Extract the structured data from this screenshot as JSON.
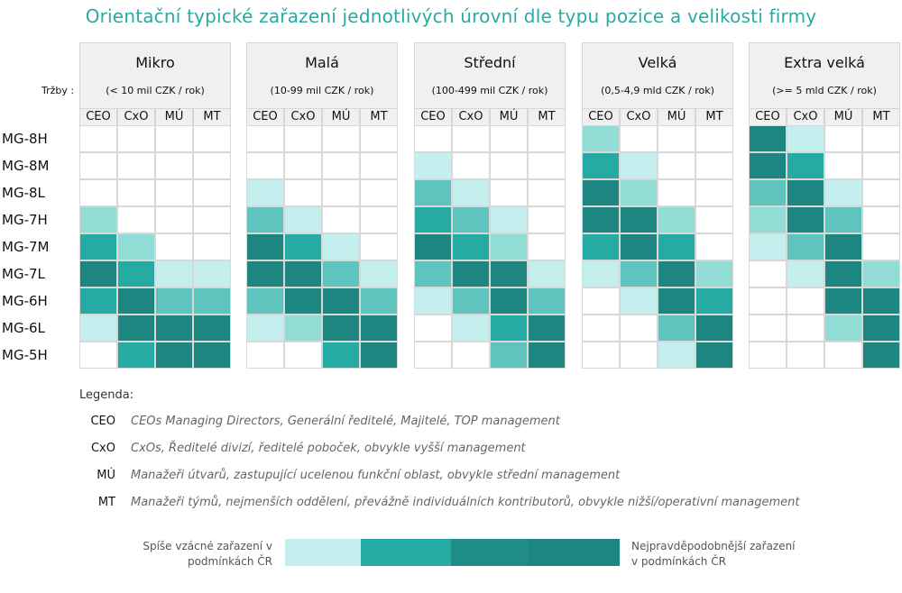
{
  "title": "Orientační typické zařazení jednotlivých úrovní dle typu pozice a velikosti firmy",
  "revenue_label": "Tržby :",
  "palette": [
    "#ffffff",
    "#c3f0ef",
    "#92dcd6",
    "#5fc4bd",
    "#26aaa4",
    "#1f8d86",
    "#1e8680"
  ],
  "chart_data": {
    "type": "heatmap",
    "title": "Orientační typické zařazení jednotlivých úrovní dle typu pozice a velikosti firmy",
    "columns": [
      "CEO",
      "CxO",
      "MÚ",
      "MT"
    ],
    "rows": [
      "MG-8H",
      "MG-8M",
      "MG-8L",
      "MG-7H",
      "MG-7M",
      "MG-7L",
      "MG-6H",
      "MG-6L",
      "MG-5H"
    ],
    "panels": [
      {
        "name": "Mikro",
        "revenue": "(< 10 mil CZK / rok)",
        "levels": [
          [
            0,
            0,
            0,
            0
          ],
          [
            0,
            0,
            0,
            0
          ],
          [
            0,
            0,
            0,
            0
          ],
          [
            2,
            0,
            0,
            0
          ],
          [
            4,
            2,
            0,
            0
          ],
          [
            6,
            4,
            1,
            1
          ],
          [
            4,
            6,
            3,
            3
          ],
          [
            1,
            6,
            6,
            6
          ],
          [
            0,
            4,
            6,
            6
          ]
        ]
      },
      {
        "name": "Malá",
        "revenue": "(10-99 mil CZK / rok)",
        "levels": [
          [
            0,
            0,
            0,
            0
          ],
          [
            0,
            0,
            0,
            0
          ],
          [
            1,
            0,
            0,
            0
          ],
          [
            3,
            1,
            0,
            0
          ],
          [
            6,
            4,
            1,
            0
          ],
          [
            6,
            6,
            3,
            1
          ],
          [
            3,
            6,
            6,
            3
          ],
          [
            1,
            2,
            6,
            6
          ],
          [
            0,
            0,
            4,
            6
          ]
        ]
      },
      {
        "name": "Střední",
        "revenue": "(100-499 mil CZK / rok)",
        "levels": [
          [
            0,
            0,
            0,
            0
          ],
          [
            1,
            0,
            0,
            0
          ],
          [
            3,
            1,
            0,
            0
          ],
          [
            4,
            3,
            1,
            0
          ],
          [
            6,
            4,
            2,
            0
          ],
          [
            3,
            6,
            6,
            1
          ],
          [
            1,
            3,
            6,
            3
          ],
          [
            0,
            1,
            4,
            6
          ],
          [
            0,
            0,
            3,
            6
          ]
        ]
      },
      {
        "name": "Velká",
        "revenue": "(0,5-4,9 mld CZK / rok)",
        "levels": [
          [
            2,
            0,
            0,
            0
          ],
          [
            4,
            1,
            0,
            0
          ],
          [
            6,
            2,
            0,
            0
          ],
          [
            6,
            6,
            2,
            0
          ],
          [
            4,
            6,
            4,
            0
          ],
          [
            1,
            3,
            6,
            2
          ],
          [
            0,
            1,
            6,
            4
          ],
          [
            0,
            0,
            3,
            6
          ],
          [
            0,
            0,
            1,
            6
          ]
        ]
      },
      {
        "name": "Extra velká",
        "revenue": "(>= 5 mld CZK / rok)",
        "levels": [
          [
            6,
            1,
            0,
            0
          ],
          [
            6,
            4,
            0,
            0
          ],
          [
            3,
            6,
            1,
            0
          ],
          [
            2,
            6,
            3,
            0
          ],
          [
            1,
            3,
            6,
            0
          ],
          [
            0,
            1,
            6,
            2
          ],
          [
            0,
            0,
            6,
            6
          ],
          [
            0,
            0,
            2,
            6
          ],
          [
            0,
            0,
            0,
            6
          ]
        ]
      }
    ],
    "grid": true
  },
  "legend": {
    "title": "Legenda:",
    "items": [
      {
        "abbr": "CEO",
        "desc": "CEOs Managing Directors, Generální ředitelé, Majitelé, TOP management"
      },
      {
        "abbr": "CxO",
        "desc": "CxOs, Ředitelé divizí, ředitelé poboček, obvykle vyšší management"
      },
      {
        "abbr": "MÚ",
        "desc": "Manažeři útvarů, zastupující ucelenou funkční oblast, obvykle střední management"
      },
      {
        "abbr": "MT",
        "desc": "Manažeři týmů, nejmenších oddělení, převážně individuálních kontributorů, obvykle nižší/operativní management"
      }
    ]
  },
  "scale": {
    "left_line1": "Spíše vzácné zařazení v",
    "left_line2": "podmínkách ČR",
    "right_line1": "Nejpravděpodobnější zařazení",
    "right_line2": "v podmínkách ČR",
    "colors": [
      "#c3f0ef",
      "#26aaa4",
      "#1f8d86",
      "#1e8680"
    ]
  }
}
